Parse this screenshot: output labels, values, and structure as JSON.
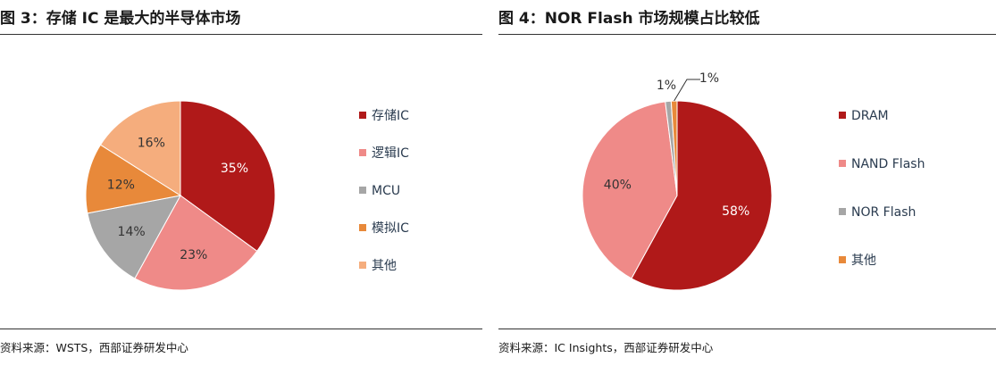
{
  "figures": [
    {
      "title": "图 3：存储 IC 是最大的半导体市场",
      "source": "资料来源：WSTS，西部证券研发中心",
      "chart_data": {
        "type": "pie",
        "slices": [
          {
            "label": "存储IC",
            "value": 35,
            "display": "35%",
            "color": "#b01919"
          },
          {
            "label": "逻辑IC",
            "value": 23,
            "display": "23%",
            "color": "#ef8a88"
          },
          {
            "label": "MCU",
            "value": 14,
            "display": "14%",
            "color": "#a6a6a6"
          },
          {
            "label": "模拟IC",
            "value": 12,
            "display": "12%",
            "color": "#e8893a"
          },
          {
            "label": "其他",
            "value": 16,
            "display": "16%",
            "color": "#f5ad7d"
          }
        ],
        "legend_position": "right"
      }
    },
    {
      "title": "图 4：NOR Flash 市场规模占比较低",
      "source": "资料来源：IC Insights，西部证券研发中心",
      "chart_data": {
        "type": "pie",
        "slices": [
          {
            "label": "DRAM",
            "value": 58,
            "display": "58%",
            "color": "#b01919"
          },
          {
            "label": "NAND Flash",
            "value": 40,
            "display": "40%",
            "color": "#ef8a88"
          },
          {
            "label": "NOR Flash",
            "value": 1,
            "display": "1%",
            "color": "#a6a6a6"
          },
          {
            "label": "其他",
            "value": 1,
            "display": "1%",
            "color": "#e8893a"
          }
        ],
        "legend_position": "right"
      }
    }
  ]
}
